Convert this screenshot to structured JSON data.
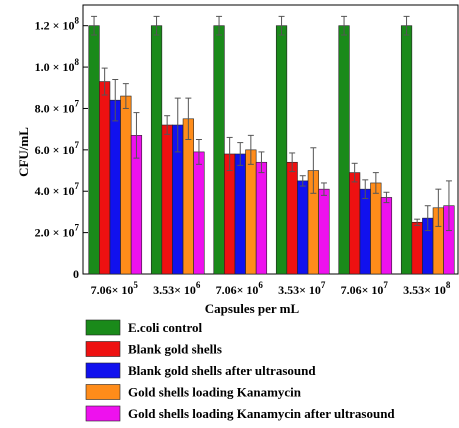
{
  "chart_data": {
    "type": "bar",
    "title": "",
    "xlabel": "Capsules per mL",
    "ylabel": "CFU/mL",
    "ylim": [
      0,
      130000000
    ],
    "grid": false,
    "legend_position": "bottom",
    "categories": [
      {
        "mant": "7.06×",
        "exp": "5"
      },
      {
        "mant": "3.53×",
        "exp": "6"
      },
      {
        "mant": "7.06×",
        "exp": "6"
      },
      {
        "mant": "3.53×",
        "exp": "7"
      },
      {
        "mant": "7.06×",
        "exp": "7"
      },
      {
        "mant": "3.53×",
        "exp": "8"
      }
    ],
    "y_ticks": [
      {
        "value": 0,
        "mant": "0",
        "exp": ""
      },
      {
        "value": 20000000,
        "mant": "2.0 × 10",
        "exp": "7"
      },
      {
        "value": 40000000,
        "mant": "4.0 × 10",
        "exp": "7"
      },
      {
        "value": 60000000,
        "mant": "6.0 × 10",
        "exp": "7"
      },
      {
        "value": 80000000,
        "mant": "8.0 × 10",
        "exp": "7"
      },
      {
        "value": 100000000,
        "mant": "1.0 × 10",
        "exp": "8"
      },
      {
        "value": 120000000,
        "mant": "1.2 × 10",
        "exp": "8"
      }
    ],
    "series": [
      {
        "name": "E.coli control",
        "color": "#1a8a1a",
        "values": [
          120000000,
          120000000,
          120000000,
          120000000,
          120000000,
          120000000
        ],
        "errors": [
          4500000,
          4500000,
          4500000,
          4500000,
          4500000,
          4500000
        ]
      },
      {
        "name": "Blank gold shells",
        "color": "#ee1111",
        "values": [
          93000000,
          72000000,
          58000000,
          54000000,
          49000000,
          25000000
        ],
        "errors": [
          6500000,
          4500000,
          8000000,
          4500000,
          4500000,
          1500000
        ]
      },
      {
        "name": "Blank gold shells after ultrasound",
        "color": "#1111ee",
        "values": [
          84000000,
          72000000,
          58000000,
          45000000,
          41000000,
          27000000
        ],
        "errors": [
          10000000,
          13000000,
          5500000,
          2500000,
          4500000,
          6000000
        ]
      },
      {
        "name": "Gold shells loading Kanamycin",
        "color": "#ff8c1a",
        "values": [
          86000000,
          75000000,
          60000000,
          50000000,
          44000000,
          32000000
        ],
        "errors": [
          6000000,
          10000000,
          7000000,
          11000000,
          5000000,
          9000000
        ]
      },
      {
        "name": "Gold shells loading Kanamycin after ultrasound",
        "color": "#ee11ee",
        "values": [
          67000000,
          59000000,
          54000000,
          41000000,
          37000000,
          33000000
        ],
        "errors": [
          11000000,
          6000000,
          5000000,
          3000000,
          2500000,
          12000000
        ]
      }
    ]
  }
}
